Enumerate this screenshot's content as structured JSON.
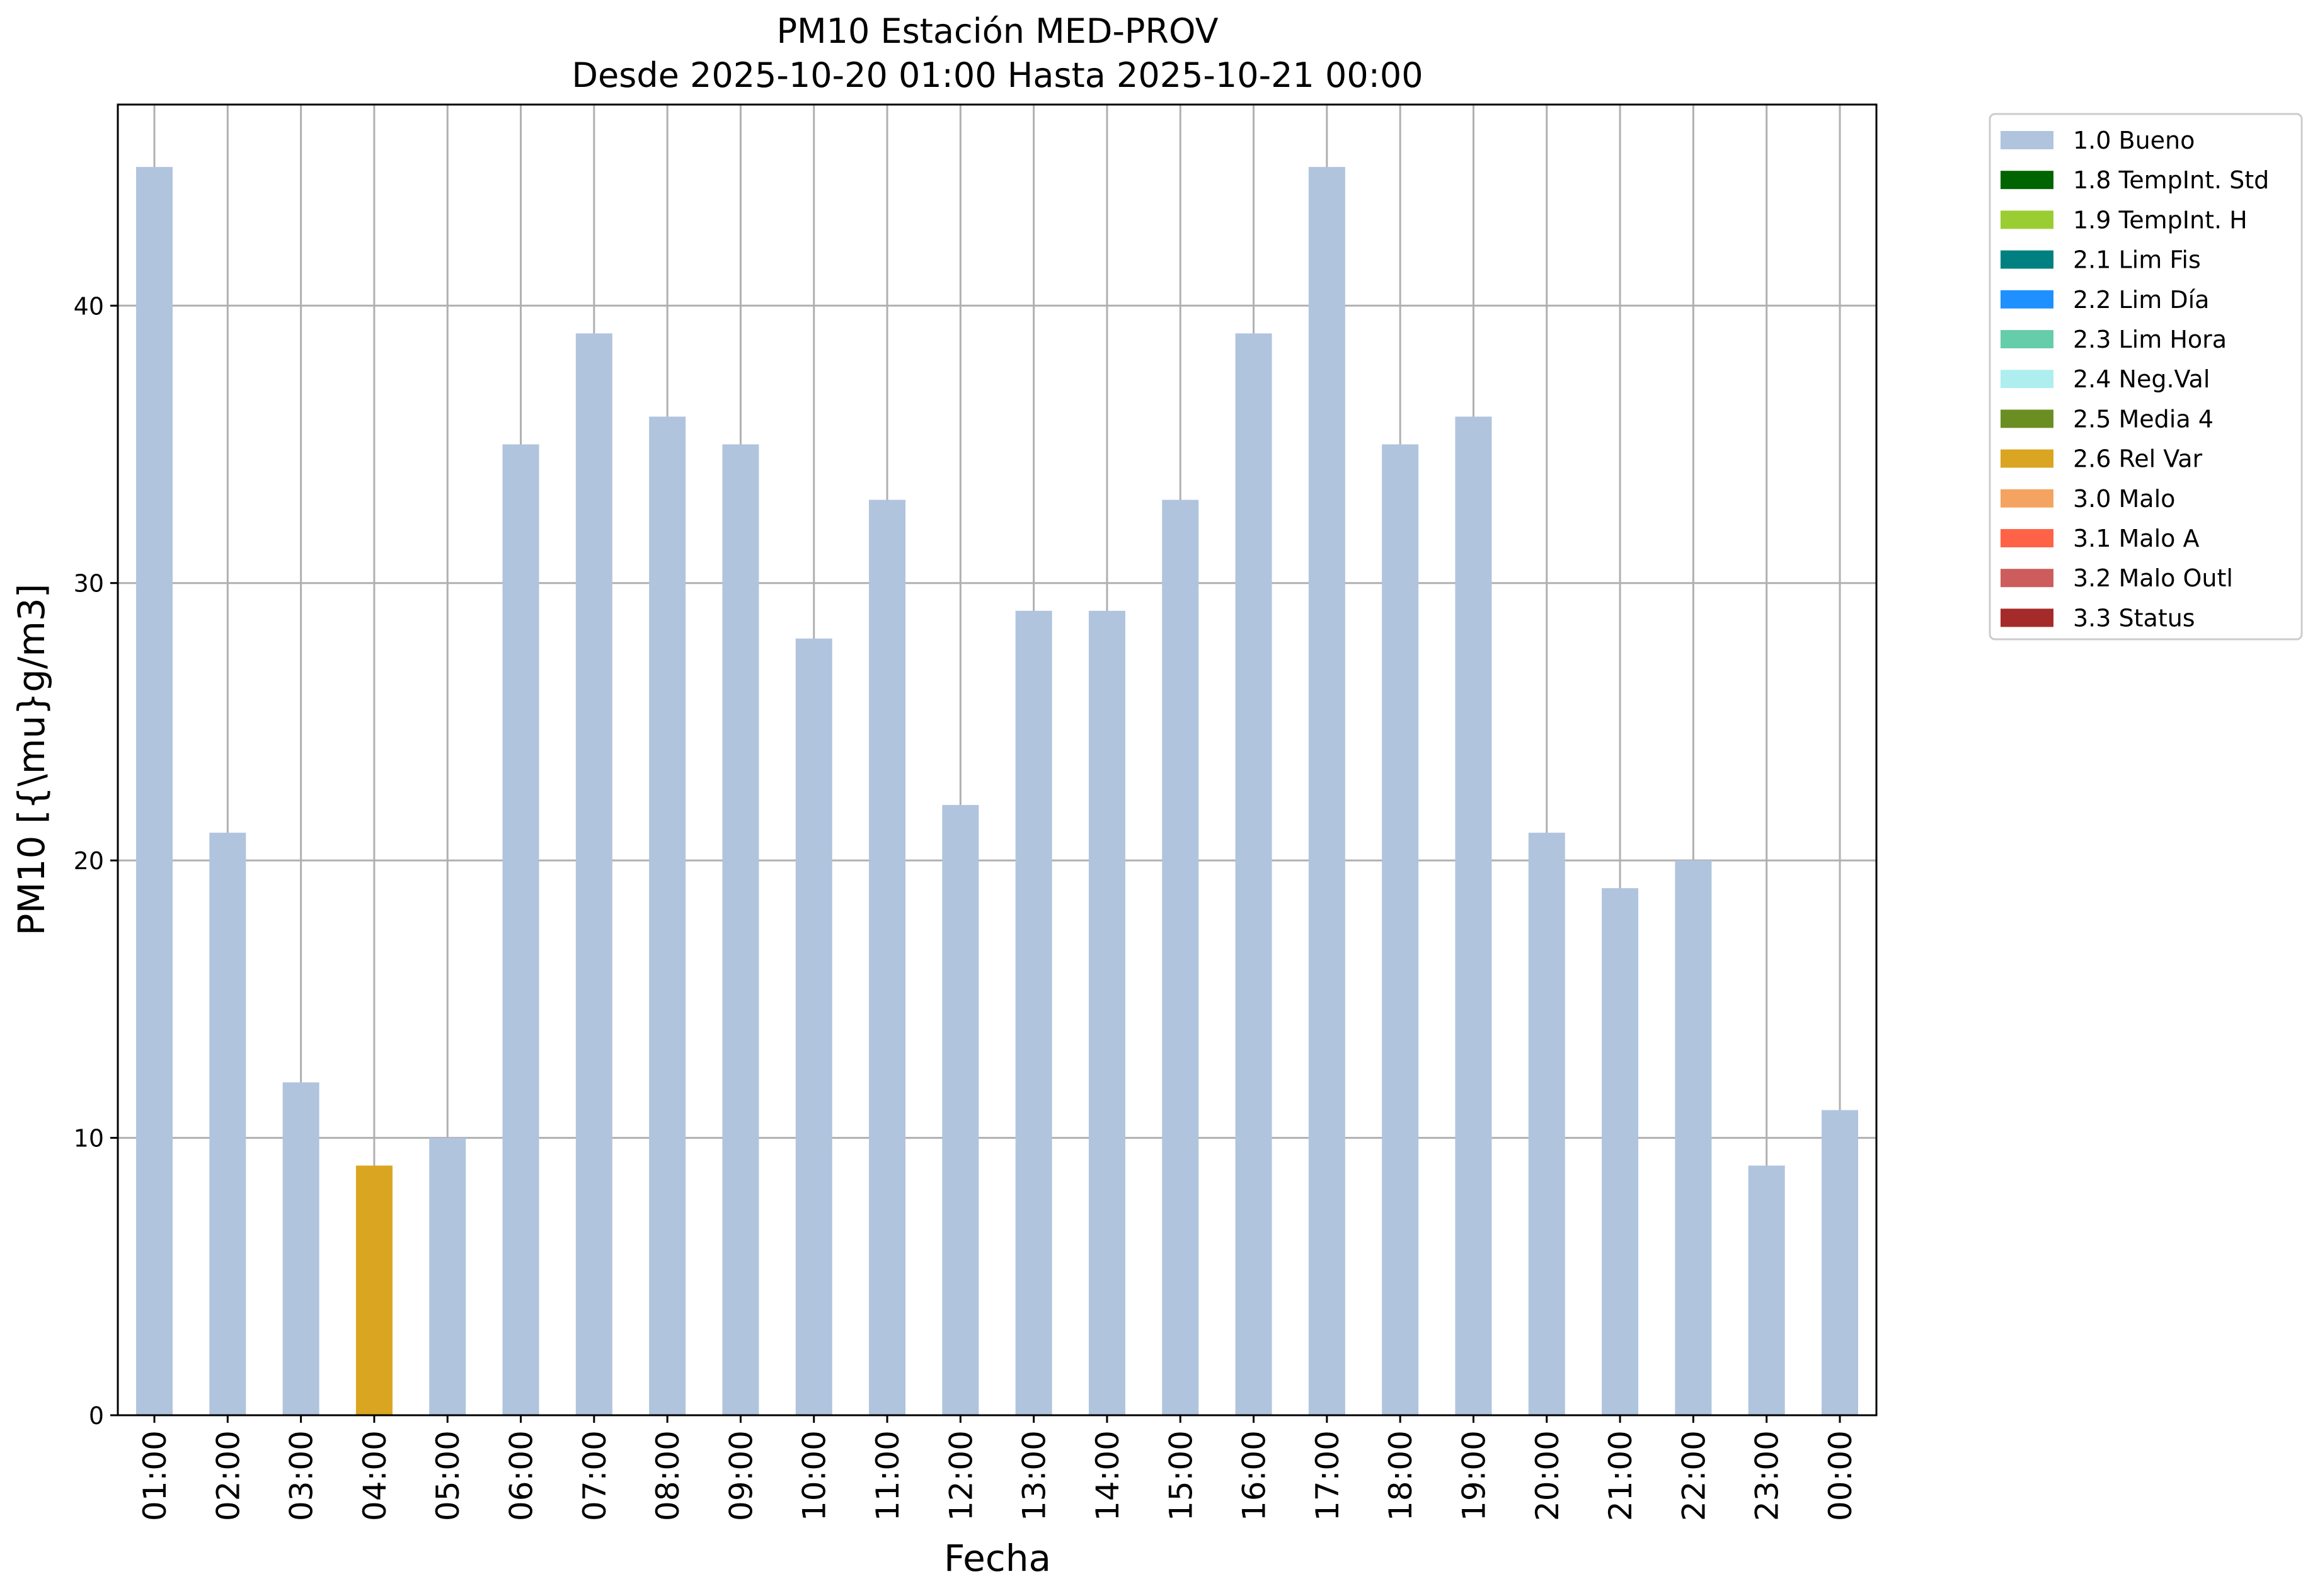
{
  "chart_data": {
    "type": "bar",
    "title": "PM10 Estación MED-PROV",
    "subtitle": "Desde 2025-10-20 01:00 Hasta 2025-10-21 00:00",
    "xlabel": "Fecha",
    "ylabel": "PM10 [{\\mu}g/m3]",
    "ylim": [
      0,
      47.25
    ],
    "yticks": [
      0,
      10,
      20,
      30,
      40
    ],
    "grid": true,
    "legend_position": "outside-top-right",
    "categories": [
      "01:00",
      "02:00",
      "03:00",
      "04:00",
      "05:00",
      "06:00",
      "07:00",
      "08:00",
      "09:00",
      "10:00",
      "11:00",
      "12:00",
      "13:00",
      "14:00",
      "15:00",
      "16:00",
      "17:00",
      "18:00",
      "19:00",
      "20:00",
      "21:00",
      "22:00",
      "23:00",
      "00:00"
    ],
    "values": [
      45,
      21,
      12,
      9,
      10,
      35,
      39,
      36,
      35,
      28,
      33,
      22,
      29,
      29,
      33,
      39,
      45,
      35,
      36,
      21,
      19,
      20,
      9,
      11
    ],
    "flags": [
      "1.0 Bueno",
      "1.0 Bueno",
      "1.0 Bueno",
      "2.6 Rel Var",
      "1.0 Bueno",
      "1.0 Bueno",
      "1.0 Bueno",
      "1.0 Bueno",
      "1.0 Bueno",
      "1.0 Bueno",
      "1.0 Bueno",
      "1.0 Bueno",
      "1.0 Bueno",
      "1.0 Bueno",
      "1.0 Bueno",
      "1.0 Bueno",
      "1.0 Bueno",
      "1.0 Bueno",
      "1.0 Bueno",
      "1.0 Bueno",
      "1.0 Bueno",
      "1.0 Bueno",
      "1.0 Bueno",
      "1.0 Bueno"
    ],
    "legend": [
      {
        "label": "1.0 Bueno",
        "color": "#b0c4de"
      },
      {
        "label": "1.8 TempInt. Std",
        "color": "#006400"
      },
      {
        "label": "1.9 TempInt. H",
        "color": "#9acd32"
      },
      {
        "label": "2.1 Lim Fis",
        "color": "#008080"
      },
      {
        "label": "2.2 Lim Día",
        "color": "#1e90ff"
      },
      {
        "label": "2.3 Lim Hora",
        "color": "#66cdaa"
      },
      {
        "label": "2.4 Neg.Val",
        "color": "#afeeee"
      },
      {
        "label": "2.5 Media 4",
        "color": "#6b8e23"
      },
      {
        "label": "2.6 Rel Var",
        "color": "#daa520"
      },
      {
        "label": "3.0 Malo",
        "color": "#f4a460"
      },
      {
        "label": "3.1 Malo A",
        "color": "#ff6347"
      },
      {
        "label": "3.2 Malo Outl",
        "color": "#cd5c5c"
      },
      {
        "label": "3.3 Status",
        "color": "#a52a2a"
      }
    ]
  }
}
